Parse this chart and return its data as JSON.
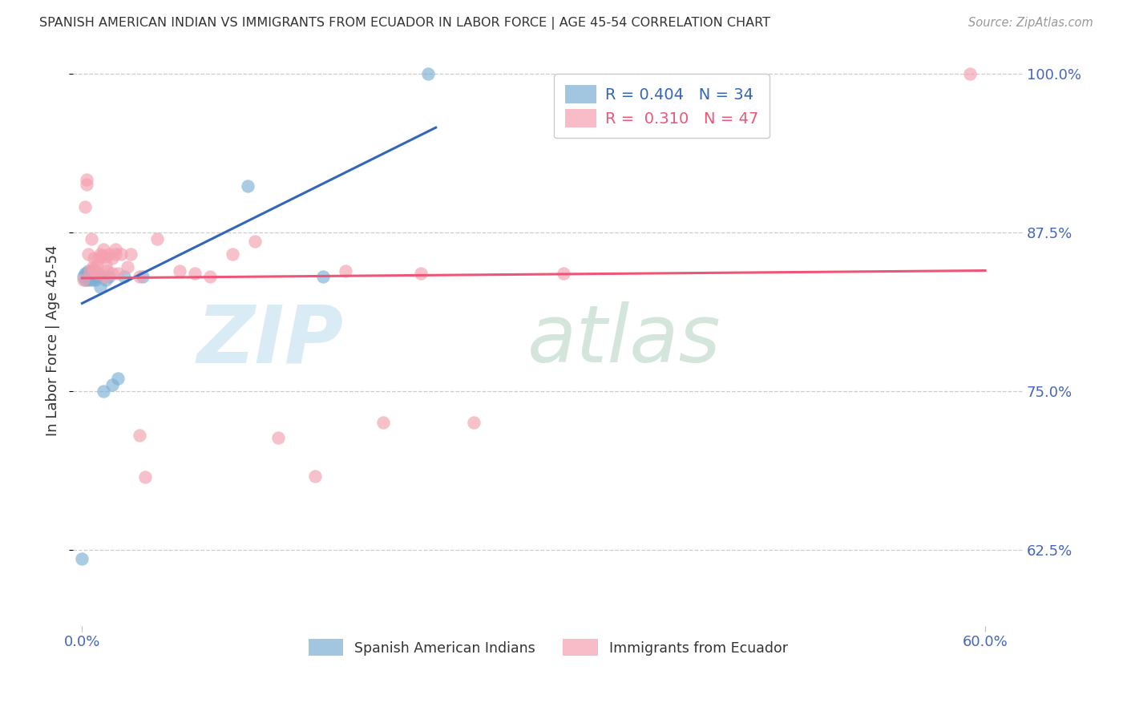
{
  "title": "SPANISH AMERICAN INDIAN VS IMMIGRANTS FROM ECUADOR IN LABOR FORCE | AGE 45-54 CORRELATION CHART",
  "source": "Source: ZipAtlas.com",
  "ylabel": "In Labor Force | Age 45-54",
  "ylim": [
    0.565,
    1.015
  ],
  "xlim": [
    -0.006,
    0.625
  ],
  "yticks": [
    0.625,
    0.75,
    0.875,
    1.0
  ],
  "ytick_labels": [
    "62.5%",
    "75.0%",
    "87.5%",
    "100.0%"
  ],
  "xtick_labels": [
    "0.0%",
    "60.0%"
  ],
  "xtick_pos": [
    0.0,
    0.6
  ],
  "r1": 0.404,
  "n1": 34,
  "r2": 0.31,
  "n2": 47,
  "blue_scatter_color": "#7BAFD4",
  "pink_scatter_color": "#F4A0B0",
  "blue_line_color": "#3366BB",
  "pink_line_color": "#EE5577",
  "tick_label_color": "#4466BB",
  "title_color": "#333333",
  "source_color": "#999999",
  "grid_color": "#CCCCCC",
  "legend1_label": "Spanish American Indians",
  "legend2_label": "Immigrants from Ecuador",
  "blue_x": [
    0.0,
    0.001,
    0.002,
    0.002,
    0.003,
    0.003,
    0.004,
    0.004,
    0.005,
    0.005,
    0.005,
    0.006,
    0.006,
    0.006,
    0.007,
    0.007,
    0.007,
    0.008,
    0.008,
    0.009,
    0.009,
    0.01,
    0.011,
    0.012,
    0.014,
    0.016,
    0.018,
    0.02,
    0.024,
    0.028,
    0.04,
    0.11,
    0.16,
    0.23
  ],
  "blue_y": [
    0.618,
    0.84,
    0.838,
    0.843,
    0.838,
    0.843,
    0.84,
    0.845,
    0.84,
    0.843,
    0.838,
    0.84,
    0.845,
    0.84,
    0.84,
    0.845,
    0.838,
    0.84,
    0.843,
    0.84,
    0.838,
    0.84,
    0.842,
    0.832,
    0.75,
    0.838,
    0.84,
    0.755,
    0.76,
    0.84,
    0.84,
    0.912,
    0.84,
    1.0
  ],
  "pink_x": [
    0.001,
    0.002,
    0.003,
    0.004,
    0.005,
    0.006,
    0.007,
    0.008,
    0.008,
    0.009,
    0.01,
    0.01,
    0.011,
    0.012,
    0.013,
    0.014,
    0.015,
    0.015,
    0.016,
    0.017,
    0.018,
    0.02,
    0.02,
    0.022,
    0.022,
    0.024,
    0.026,
    0.03,
    0.032,
    0.038,
    0.038,
    0.042,
    0.05,
    0.065,
    0.075,
    0.085,
    0.1,
    0.115,
    0.13,
    0.155,
    0.175,
    0.2,
    0.225,
    0.26,
    0.32,
    0.59,
    0.003
  ],
  "pink_y": [
    0.838,
    0.895,
    0.913,
    0.858,
    0.845,
    0.87,
    0.848,
    0.845,
    0.855,
    0.845,
    0.85,
    0.843,
    0.855,
    0.858,
    0.857,
    0.862,
    0.84,
    0.856,
    0.85,
    0.845,
    0.858,
    0.855,
    0.843,
    0.862,
    0.858,
    0.843,
    0.858,
    0.848,
    0.858,
    0.84,
    0.715,
    0.682,
    0.87,
    0.845,
    0.843,
    0.84,
    0.858,
    0.868,
    0.713,
    0.683,
    0.845,
    0.725,
    0.843,
    0.725,
    0.843,
    1.0,
    0.917
  ]
}
